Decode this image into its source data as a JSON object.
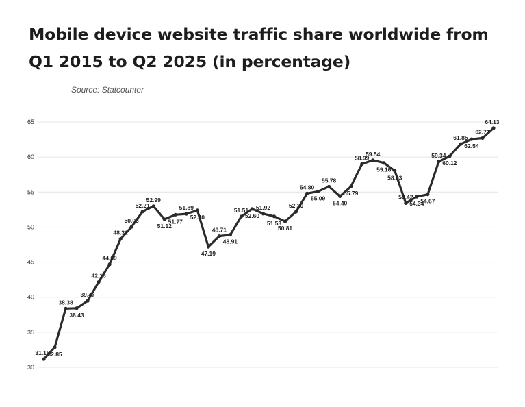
{
  "chart_data": {
    "type": "line",
    "title": "Mobile device website traffic share worldwide from Q1 2015 to Q2 2025 (in percentage)",
    "subtitle": "Source: Statcounter",
    "ylim": [
      30,
      65
    ],
    "yticks": [
      30,
      35,
      40,
      45,
      50,
      55,
      60,
      65
    ],
    "grid": true,
    "series": [
      {
        "color": "#2b2b2b",
        "values": [
          31.16,
          32.85,
          38.38,
          38.43,
          39.47,
          42.16,
          44.69,
          48.31,
          50.03,
          52.21,
          52.99,
          51.12,
          51.77,
          51.89,
          52.4,
          47.19,
          48.71,
          48.91,
          51.51,
          52.6,
          51.92,
          51.53,
          50.81,
          52.2,
          54.8,
          55.09,
          55.78,
          54.4,
          55.79,
          58.99,
          59.54,
          59.16,
          58.03,
          53.42,
          54.34,
          54.67,
          59.34,
          60.12,
          61.85,
          62.54,
          62.71,
          64.13
        ],
        "labels": [
          "31.16",
          "32.85",
          "38.38",
          "38.43",
          "39.47",
          "42.16",
          "44.69",
          "48.31",
          "50.03",
          "52.21",
          "52.99",
          "51.12",
          "51.77",
          "51.89",
          "52.40",
          "47.19",
          "48.71",
          "48.91",
          "51.51",
          "52.60",
          "51.92",
          "51.53",
          "50.81",
          "52.20",
          "54.80",
          "55.09",
          "55.78",
          "54.40",
          "55.79",
          "58.99",
          "59.54",
          "59.16",
          "58.03",
          "53.42",
          "54.34",
          "54.67",
          "59.34",
          "60.12",
          "61.85",
          "62.54",
          "62.71",
          "64.13"
        ]
      }
    ]
  }
}
